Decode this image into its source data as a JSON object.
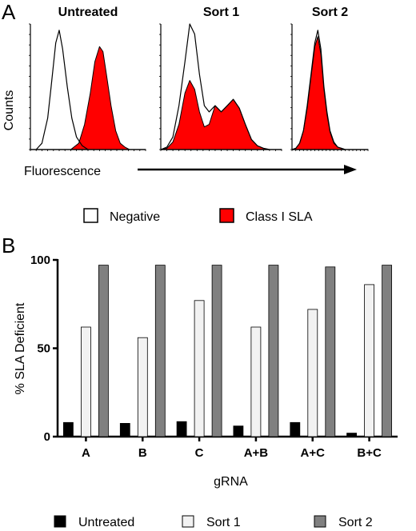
{
  "panel_a": {
    "letter": "A",
    "ylabel": "Counts",
    "xlabel": "Fluorescence",
    "legend": [
      {
        "label": "Negative",
        "fill": "#ffffff"
      },
      {
        "label": "Class I SLA",
        "fill": "#ff0000"
      }
    ]
  },
  "panel_b": {
    "letter": "B"
  },
  "chart_data": [
    {
      "type": "area",
      "kind": "flow-cytometry histograms",
      "ylabel": "Counts",
      "xlabel": "Fluorescence",
      "panels": [
        {
          "title": "Untreated",
          "series": [
            {
              "name": "Negative",
              "color": "#ffffff",
              "x": [
                0,
                0.05,
                0.1,
                0.15,
                0.18,
                0.22,
                0.25,
                0.28,
                0.32,
                0.36,
                0.4,
                0.45,
                0.5,
                0.55,
                0.6,
                0.65,
                0.7,
                0.8,
                0.9,
                1.0
              ],
              "y": [
                0,
                0.0,
                0.05,
                0.25,
                0.5,
                0.85,
                0.95,
                0.8,
                0.5,
                0.25,
                0.1,
                0.03,
                0.0,
                0,
                0,
                0,
                0,
                0,
                0,
                0
              ]
            },
            {
              "name": "Class I SLA",
              "color": "#ff0000",
              "x": [
                0,
                0.3,
                0.35,
                0.42,
                0.47,
                0.52,
                0.56,
                0.6,
                0.63,
                0.66,
                0.7,
                0.74,
                0.78,
                0.82,
                0.86,
                0.9,
                1.0
              ],
              "y": [
                0,
                0,
                0.0,
                0.05,
                0.2,
                0.45,
                0.7,
                0.82,
                0.78,
                0.6,
                0.35,
                0.15,
                0.05,
                0.02,
                0,
                0,
                0
              ]
            }
          ]
        },
        {
          "title": "Sort 1",
          "series": [
            {
              "name": "Negative",
              "color": "#ffffff",
              "x": [
                0,
                0.05,
                0.1,
                0.15,
                0.2,
                0.24,
                0.28,
                0.32,
                0.36,
                0.4,
                0.45,
                0.5,
                0.55,
                0.6,
                0.65,
                0.7,
                0.75,
                0.8,
                0.85,
                0.9,
                1.0
              ],
              "y": [
                0,
                0.02,
                0.1,
                0.35,
                0.7,
                1.0,
                0.92,
                0.6,
                0.35,
                0.3,
                0.35,
                0.3,
                0.35,
                0.4,
                0.33,
                0.2,
                0.08,
                0.03,
                0.01,
                0,
                0
              ]
            },
            {
              "name": "Class I SLA",
              "color": "#ff0000",
              "x": [
                0,
                0.05,
                0.1,
                0.15,
                0.2,
                0.24,
                0.28,
                0.32,
                0.36,
                0.4,
                0.45,
                0.5,
                0.55,
                0.6,
                0.65,
                0.7,
                0.75,
                0.8,
                0.85,
                0.9,
                1.0
              ],
              "y": [
                0,
                0.01,
                0.06,
                0.2,
                0.45,
                0.55,
                0.48,
                0.3,
                0.18,
                0.2,
                0.35,
                0.3,
                0.35,
                0.4,
                0.33,
                0.2,
                0.08,
                0.03,
                0.01,
                0,
                0
              ]
            }
          ]
        },
        {
          "title": "Sort 2",
          "series": [
            {
              "name": "Negative",
              "color": "#ffffff",
              "x": [
                0,
                0.05,
                0.1,
                0.15,
                0.2,
                0.25,
                0.3,
                0.34,
                0.38,
                0.42,
                0.46,
                0.5,
                0.55,
                0.6,
                0.65,
                0.7,
                0.8,
                0.9,
                1.0
              ],
              "y": [
                0,
                0.01,
                0.05,
                0.15,
                0.35,
                0.6,
                0.85,
                0.95,
                0.8,
                0.5,
                0.3,
                0.15,
                0.06,
                0.02,
                0.01,
                0,
                0,
                0,
                0
              ]
            },
            {
              "name": "Class I SLA",
              "color": "#ff0000",
              "x": [
                0,
                0.05,
                0.1,
                0.15,
                0.2,
                0.25,
                0.3,
                0.34,
                0.38,
                0.42,
                0.46,
                0.5,
                0.55,
                0.6,
                0.65,
                0.7,
                0.8,
                0.9,
                1.0
              ],
              "y": [
                0,
                0.01,
                0.05,
                0.15,
                0.33,
                0.58,
                0.82,
                0.9,
                0.76,
                0.48,
                0.28,
                0.14,
                0.05,
                0.02,
                0.01,
                0,
                0,
                0,
                0
              ]
            }
          ]
        }
      ]
    },
    {
      "type": "bar",
      "categories": [
        "A",
        "B",
        "C",
        "A+B",
        "A+C",
        "B+C"
      ],
      "series": [
        {
          "name": "Untreated",
          "color": "#000000",
          "values": [
            8,
            7.5,
            8.5,
            6,
            8,
            2
          ]
        },
        {
          "name": "Sort 1",
          "color": "#f2f2f2",
          "values": [
            62,
            56,
            77,
            62,
            72,
            86
          ]
        },
        {
          "name": "Sort 2",
          "color": "#808080",
          "values": [
            97,
            97,
            97,
            97,
            96,
            97
          ]
        }
      ],
      "xlabel": "gRNA",
      "ylabel": "% SLA Deficient",
      "ylim": [
        0,
        100
      ],
      "yticks": [
        0,
        50,
        100
      ],
      "grid": false,
      "legend_position": "bottom"
    }
  ]
}
